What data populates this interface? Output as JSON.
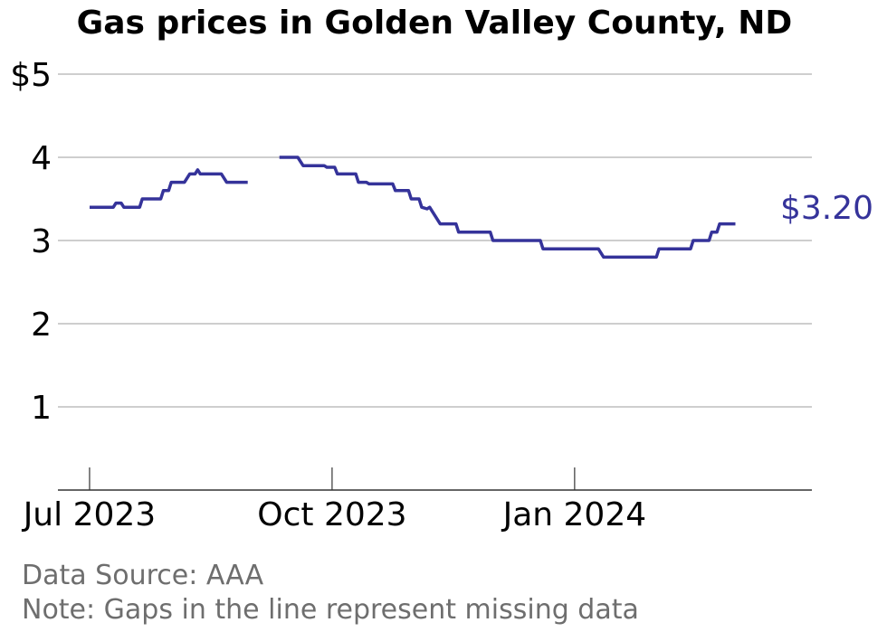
{
  "colors": {
    "line": "#35339a",
    "grid": "#b0b0b0",
    "axis": "#333333",
    "text": "#000000",
    "footnote": "#6e6e6e"
  },
  "chart_data": {
    "type": "line",
    "title": "Gas prices in Golden Valley County, ND",
    "xlabel": "",
    "ylabel": "",
    "ylim": [
      0,
      5
    ],
    "xlim": [
      "2023-06-19",
      "2024-03-31"
    ],
    "grid": "horizontal",
    "y_ticks": [
      {
        "value": 1,
        "label": "1"
      },
      {
        "value": 2,
        "label": "2"
      },
      {
        "value": 3,
        "label": "3"
      },
      {
        "value": 4,
        "label": "4"
      },
      {
        "value": 5,
        "label": "$5"
      }
    ],
    "x_ticks": [
      {
        "value": "2023-07-01",
        "label": "Jul 2023"
      },
      {
        "value": "2023-10-01",
        "label": "Oct 2023"
      },
      {
        "value": "2024-01-01",
        "label": "Jan 2024"
      }
    ],
    "end_label": "$3.20",
    "series": [
      {
        "segments": [
          [
            [
              "2023-07-01",
              3.4
            ],
            [
              "2023-07-10",
              3.4
            ],
            [
              "2023-07-11",
              3.45
            ],
            [
              "2023-07-13",
              3.45
            ],
            [
              "2023-07-14",
              3.4
            ],
            [
              "2023-07-20",
              3.4
            ],
            [
              "2023-07-21",
              3.5
            ],
            [
              "2023-07-28",
              3.5
            ],
            [
              "2023-07-29",
              3.6
            ],
            [
              "2023-07-31",
              3.6
            ],
            [
              "2023-08-01",
              3.7
            ],
            [
              "2023-08-06",
              3.7
            ],
            [
              "2023-08-08",
              3.8
            ],
            [
              "2023-08-10",
              3.8
            ],
            [
              "2023-08-11",
              3.85
            ],
            [
              "2023-08-12",
              3.8
            ],
            [
              "2023-08-20",
              3.8
            ],
            [
              "2023-08-22",
              3.7
            ],
            [
              "2023-08-30",
              3.7
            ]
          ],
          [
            [
              "2023-09-11",
              4.0
            ],
            [
              "2023-09-18",
              4.0
            ],
            [
              "2023-09-20",
              3.9
            ],
            [
              "2023-09-28",
              3.9
            ],
            [
              "2023-09-29",
              3.88
            ],
            [
              "2023-10-02",
              3.88
            ],
            [
              "2023-10-03",
              3.8
            ],
            [
              "2023-10-10",
              3.8
            ],
            [
              "2023-10-11",
              3.7
            ],
            [
              "2023-10-14",
              3.7
            ],
            [
              "2023-10-15",
              3.68
            ],
            [
              "2023-10-24",
              3.68
            ],
            [
              "2023-10-25",
              3.6
            ],
            [
              "2023-10-30",
              3.6
            ],
            [
              "2023-10-31",
              3.5
            ],
            [
              "2023-11-03",
              3.5
            ],
            [
              "2023-11-04",
              3.4
            ],
            [
              "2023-11-06",
              3.38
            ],
            [
              "2023-11-07",
              3.4
            ],
            [
              "2023-11-08",
              3.35
            ],
            [
              "2023-11-11",
              3.2
            ],
            [
              "2023-11-17",
              3.2
            ],
            [
              "2023-11-18",
              3.1
            ],
            [
              "2023-11-30",
              3.1
            ],
            [
              "2023-12-01",
              3.0
            ],
            [
              "2023-12-19",
              3.0
            ],
            [
              "2023-12-20",
              2.9
            ],
            [
              "2024-01-10",
              2.9
            ],
            [
              "2024-01-12",
              2.8
            ],
            [
              "2024-02-01",
              2.8
            ],
            [
              "2024-02-02",
              2.9
            ],
            [
              "2024-02-14",
              2.9
            ],
            [
              "2024-02-15",
              3.0
            ],
            [
              "2024-02-21",
              3.0
            ],
            [
              "2024-02-22",
              3.1
            ],
            [
              "2024-02-24",
              3.1
            ],
            [
              "2024-02-25",
              3.2
            ],
            [
              "2024-03-02",
              3.2
            ]
          ]
        ]
      }
    ]
  },
  "footnotes": {
    "source": "Data Source: AAA",
    "note": "Note: Gaps in the line represent missing data"
  }
}
